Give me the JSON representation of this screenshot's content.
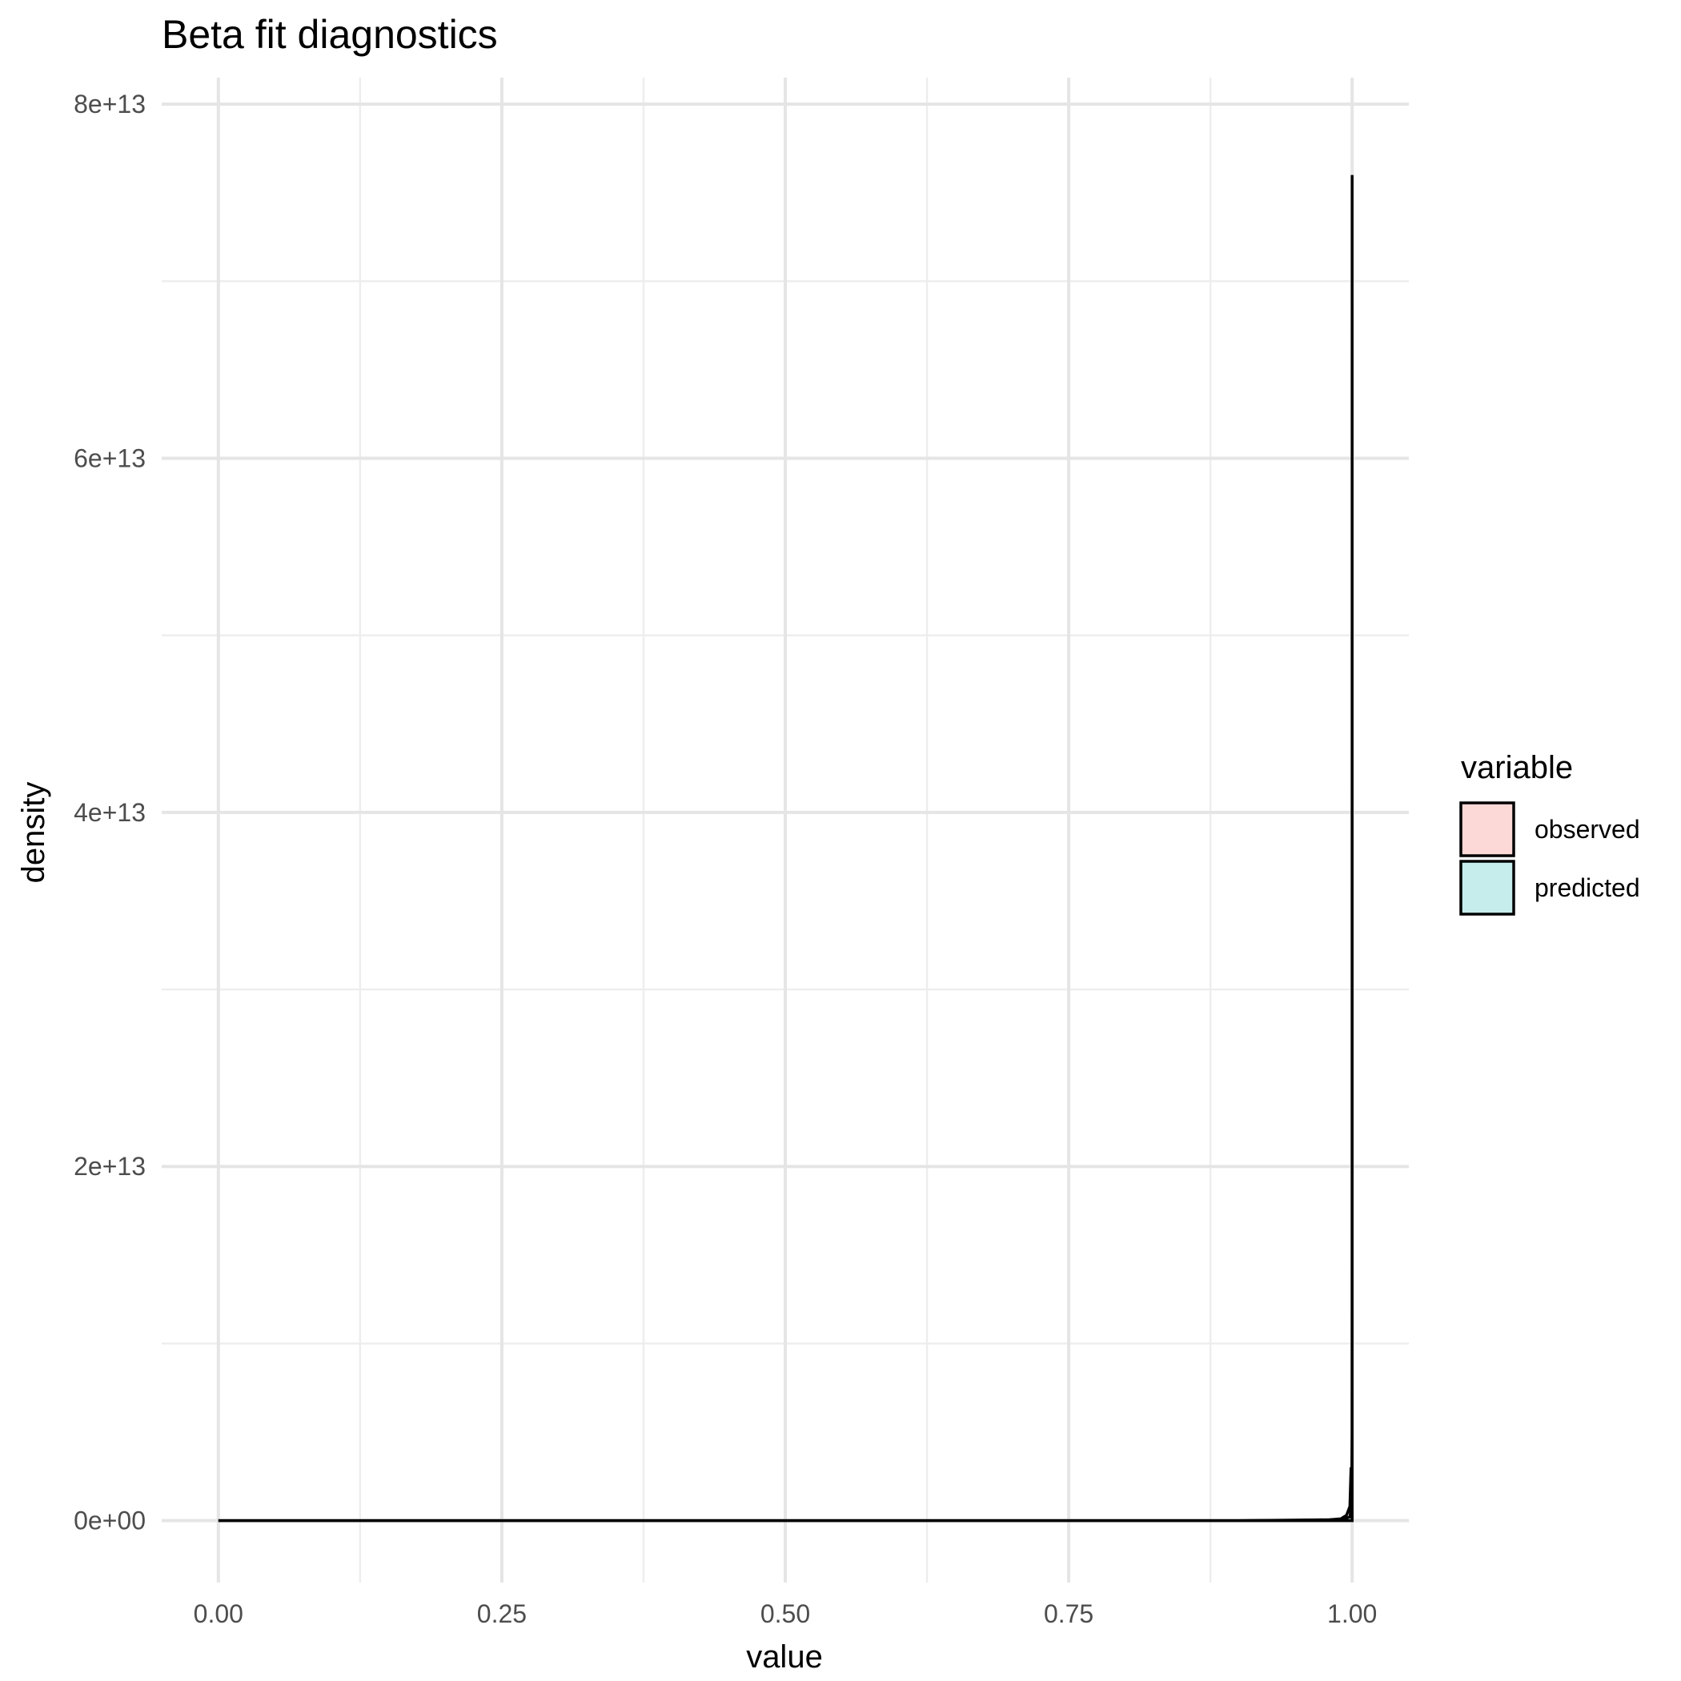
{
  "chart_data": {
    "type": "area",
    "title": "Beta fit diagnostics",
    "xlabel": "value",
    "ylabel": "density",
    "xlim": [
      -0.05,
      1.05
    ],
    "ylim": [
      -3500000000000.0,
      81500000000000.0
    ],
    "x_ticks": [
      0,
      0.25,
      0.5,
      0.75,
      1.0
    ],
    "x_tick_labels": [
      "0.00",
      "0.25",
      "0.50",
      "0.75",
      "1.00"
    ],
    "y_ticks": [
      0,
      20000000000000.0,
      40000000000000.0,
      60000000000000.0,
      80000000000000.0
    ],
    "y_tick_labels": [
      "0e+00",
      "2e+13",
      "4e+13",
      "6e+13",
      "8e+13"
    ],
    "grid": true,
    "legend": {
      "title": "variable",
      "position": "right",
      "entries": [
        {
          "name": "observed",
          "color": "#fcd8d6"
        },
        {
          "name": "predicted",
          "color": "#c6ecec"
        }
      ]
    },
    "series": [
      {
        "name": "observed",
        "color": "#fcd8d6",
        "x": [
          0,
          0.5,
          0.9,
          0.95,
          0.98,
          0.99,
          0.995,
          0.998,
          0.999,
          1.0
        ],
        "values": [
          0,
          0,
          0,
          10000000000.0,
          50000000000.0,
          100000000000.0,
          300000000000.0,
          800000000000.0,
          3000000000000.0,
          0
        ]
      },
      {
        "name": "predicted",
        "color": "#c6ecec",
        "x": [
          0,
          0.5,
          0.9,
          0.99,
          0.998,
          0.9995,
          0.9999,
          0.99995,
          0.99999,
          1.0
        ],
        "values": [
          0,
          0,
          0,
          50000000000.0,
          200000000000.0,
          1000000000000.0,
          5000000000000.0,
          20000000000000.0,
          76000000000000.0,
          0
        ]
      }
    ]
  }
}
